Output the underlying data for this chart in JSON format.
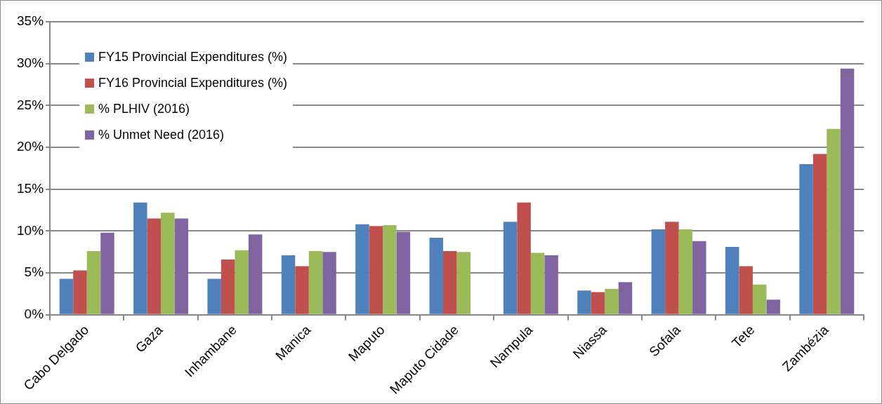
{
  "chart_data": {
    "type": "bar",
    "categories": [
      "Cabo Delgado",
      "Gaza",
      "Inhambane",
      "Manica",
      "Maputo",
      "Maputo Cidade",
      "Nampula",
      "Niassa",
      "Sofala",
      "Tete",
      "Zambézia"
    ],
    "series": [
      {
        "name": "FY15 Provincial Expenditures (%)",
        "color": "#4f81bd",
        "values": [
          4.3,
          13.4,
          4.3,
          7.1,
          10.8,
          9.2,
          11.1,
          2.9,
          10.2,
          8.1,
          18.0
        ]
      },
      {
        "name": "FY16 Provincial Expenditures (%)",
        "color": "#c0504d",
        "values": [
          5.3,
          11.5,
          6.6,
          5.8,
          10.6,
          7.6,
          13.4,
          2.7,
          11.1,
          5.8,
          19.2
        ]
      },
      {
        "name": "% PLHIV (2016)",
        "color": "#9bbb59",
        "values": [
          7.6,
          12.2,
          7.7,
          7.6,
          10.7,
          7.5,
          7.4,
          3.1,
          10.2,
          3.6,
          22.2
        ]
      },
      {
        "name": "% Unmet Need (2016)",
        "color": "#8064a2",
        "values": [
          9.8,
          11.5,
          9.6,
          7.5,
          9.9,
          null,
          7.1,
          3.9,
          8.8,
          1.8,
          29.4
        ]
      }
    ],
    "ylim": [
      0,
      35
    ],
    "yticks": [
      {
        "value": 0,
        "label": "0%"
      },
      {
        "value": 5,
        "label": "5%"
      },
      {
        "value": 10,
        "label": "10%"
      },
      {
        "value": 15,
        "label": "15%"
      },
      {
        "value": 20,
        "label": "20%"
      },
      {
        "value": 25,
        "label": "25%"
      },
      {
        "value": 30,
        "label": "30%"
      },
      {
        "value": 35,
        "label": "35%"
      }
    ],
    "grid": "y",
    "legend": "top left"
  }
}
